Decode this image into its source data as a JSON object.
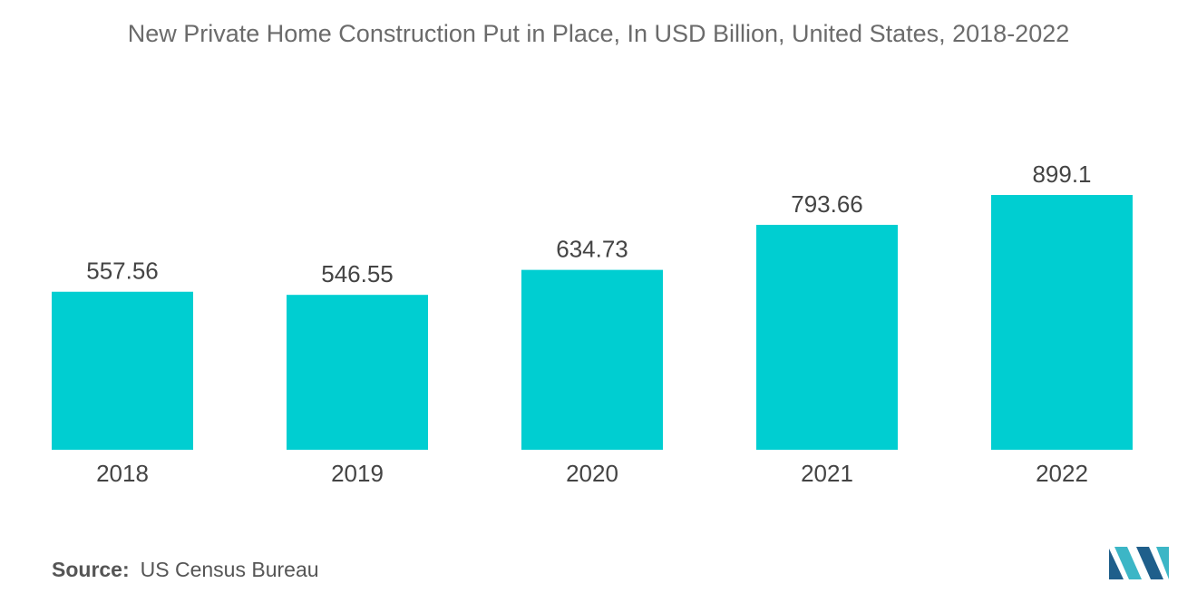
{
  "chart_data": {
    "type": "bar",
    "title": "New Private Home Construction Put in Place, In USD Billion, United States, 2018-2022",
    "categories": [
      "2018",
      "2019",
      "2020",
      "2021",
      "2022"
    ],
    "values": [
      557.56,
      546.55,
      634.73,
      793.66,
      899.1
    ],
    "value_labels": [
      "557.56",
      "546.55",
      "634.73",
      "793.66",
      "899.1"
    ],
    "xlabel": "",
    "ylabel": "",
    "ylim": [
      0,
      899.1
    ],
    "grid": false,
    "legend": "none",
    "bar_color": "#00ced1"
  },
  "source": {
    "label": "Source:",
    "value": "US Census Bureau"
  },
  "logo": {
    "icon": "mordor-intelligence-logo-icon",
    "colors": [
      "#1f5f8b",
      "#3cb6c6"
    ]
  }
}
